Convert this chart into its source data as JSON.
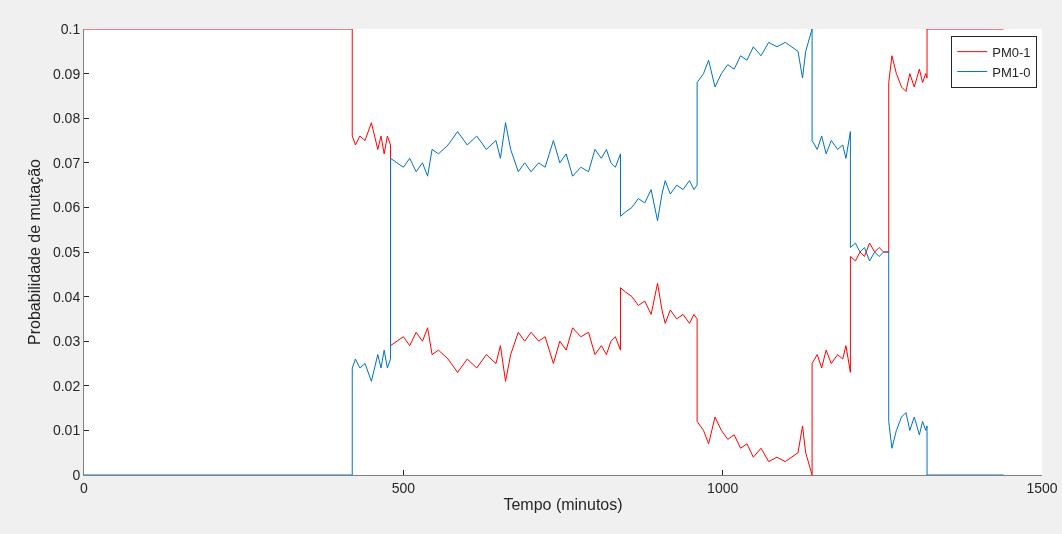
{
  "chart_data": {
    "type": "line",
    "xlabel": "Tempo (minutos)",
    "ylabel": "Probabilidade de mutação",
    "xlim": [
      0,
      1500
    ],
    "xticks": [
      0,
      500,
      1000,
      1500
    ],
    "ylim": [
      0,
      0.1
    ],
    "yticks": [
      0,
      0.01,
      0.02,
      0.03,
      0.04,
      0.05,
      0.06,
      0.07,
      0.08,
      0.09,
      0.1
    ],
    "grid": false,
    "legend": "top right",
    "line_style": "solid",
    "marker": "none",
    "series": [
      {
        "name": "PM0-1",
        "color": "#ff0000",
        "x": [
          0,
          420,
          420,
          425,
          432,
          440,
          450,
          455,
          460,
          465,
          470,
          475,
          480,
          480,
          490,
          500,
          510,
          520,
          530,
          538,
          545,
          555,
          570,
          585,
          600,
          615,
          630,
          645,
          652,
          660,
          668,
          680,
          690,
          700,
          712,
          722,
          735,
          745,
          755,
          765,
          778,
          790,
          800,
          810,
          818,
          825,
          832,
          840,
          840,
          848,
          858,
          868,
          878,
          888,
          898,
          905,
          910,
          918,
          928,
          938,
          948,
          955,
          960,
          960,
          970,
          978,
          988,
          998,
          1008,
          1018,
          1028,
          1038,
          1048,
          1060,
          1072,
          1085,
          1098,
          1108,
          1118,
          1125,
          1130,
          1136,
          1140,
          1140,
          1148,
          1155,
          1162,
          1170,
          1180,
          1188,
          1193,
          1200,
          1200,
          1208,
          1215,
          1222,
          1230,
          1238,
          1245,
          1252,
          1260,
          1260,
          1265,
          1272,
          1280,
          1287,
          1293,
          1300,
          1308,
          1313,
          1318,
          1320,
          1320,
          1440
        ],
        "values": [
          0.1,
          0.1,
          0.076,
          0.074,
          0.076,
          0.075,
          0.079,
          0.076,
          0.073,
          0.076,
          0.072,
          0.076,
          0.074,
          0.029,
          0.03,
          0.031,
          0.029,
          0.032,
          0.03,
          0.033,
          0.027,
          0.028,
          0.026,
          0.023,
          0.026,
          0.024,
          0.027,
          0.025,
          0.029,
          0.021,
          0.027,
          0.032,
          0.03,
          0.032,
          0.03,
          0.031,
          0.025,
          0.03,
          0.028,
          0.033,
          0.031,
          0.032,
          0.027,
          0.029,
          0.027,
          0.03,
          0.031,
          0.028,
          0.042,
          0.041,
          0.04,
          0.038,
          0.039,
          0.036,
          0.043,
          0.037,
          0.034,
          0.037,
          0.035,
          0.036,
          0.034,
          0.036,
          0.035,
          0.012,
          0.01,
          0.007,
          0.013,
          0.01,
          0.008,
          0.009,
          0.006,
          0.007,
          0.004,
          0.006,
          0.003,
          0.004,
          0.003,
          0.004,
          0.005,
          0.011,
          0.005,
          0.002,
          0.0,
          0.025,
          0.027,
          0.024,
          0.028,
          0.025,
          0.027,
          0.026,
          0.029,
          0.023,
          0.049,
          0.048,
          0.05,
          0.049,
          0.052,
          0.05,
          0.051,
          0.05,
          0.05,
          0.088,
          0.094,
          0.09,
          0.087,
          0.086,
          0.09,
          0.087,
          0.091,
          0.088,
          0.09,
          0.089,
          0.1,
          0.1
        ]
      },
      {
        "name": "PM1-0",
        "color": "#0072bd",
        "x": [
          0,
          420,
          420,
          425,
          432,
          440,
          450,
          455,
          460,
          465,
          470,
          475,
          480,
          480,
          490,
          500,
          510,
          520,
          530,
          538,
          545,
          555,
          570,
          585,
          600,
          615,
          630,
          645,
          652,
          660,
          668,
          680,
          690,
          700,
          712,
          722,
          735,
          745,
          755,
          765,
          778,
          790,
          800,
          810,
          818,
          825,
          832,
          840,
          840,
          848,
          858,
          868,
          878,
          888,
          898,
          905,
          910,
          918,
          928,
          938,
          948,
          955,
          960,
          960,
          970,
          978,
          988,
          998,
          1008,
          1018,
          1028,
          1038,
          1048,
          1060,
          1072,
          1085,
          1098,
          1108,
          1118,
          1125,
          1130,
          1136,
          1140,
          1140,
          1148,
          1155,
          1162,
          1170,
          1180,
          1188,
          1193,
          1200,
          1200,
          1208,
          1215,
          1222,
          1230,
          1238,
          1245,
          1252,
          1260,
          1260,
          1265,
          1272,
          1280,
          1287,
          1293,
          1300,
          1308,
          1313,
          1318,
          1320,
          1320,
          1440
        ],
        "values": [
          0,
          0,
          0.024,
          0.026,
          0.024,
          0.025,
          0.021,
          0.024,
          0.027,
          0.024,
          0.028,
          0.024,
          0.026,
          0.071,
          0.07,
          0.069,
          0.071,
          0.068,
          0.07,
          0.067,
          0.073,
          0.072,
          0.074,
          0.077,
          0.074,
          0.076,
          0.073,
          0.075,
          0.071,
          0.079,
          0.073,
          0.068,
          0.07,
          0.068,
          0.07,
          0.069,
          0.075,
          0.07,
          0.072,
          0.067,
          0.069,
          0.068,
          0.073,
          0.071,
          0.073,
          0.07,
          0.069,
          0.072,
          0.058,
          0.059,
          0.06,
          0.062,
          0.061,
          0.064,
          0.057,
          0.063,
          0.066,
          0.063,
          0.065,
          0.064,
          0.066,
          0.064,
          0.065,
          0.088,
          0.09,
          0.093,
          0.087,
          0.09,
          0.092,
          0.091,
          0.094,
          0.093,
          0.096,
          0.094,
          0.097,
          0.096,
          0.097,
          0.096,
          0.095,
          0.089,
          0.095,
          0.098,
          0.1,
          0.075,
          0.073,
          0.076,
          0.072,
          0.075,
          0.073,
          0.074,
          0.071,
          0.077,
          0.051,
          0.052,
          0.05,
          0.051,
          0.048,
          0.05,
          0.049,
          0.05,
          0.05,
          0.012,
          0.006,
          0.01,
          0.013,
          0.014,
          0.01,
          0.013,
          0.009,
          0.012,
          0.01,
          0.011,
          0,
          0
        ]
      }
    ]
  }
}
